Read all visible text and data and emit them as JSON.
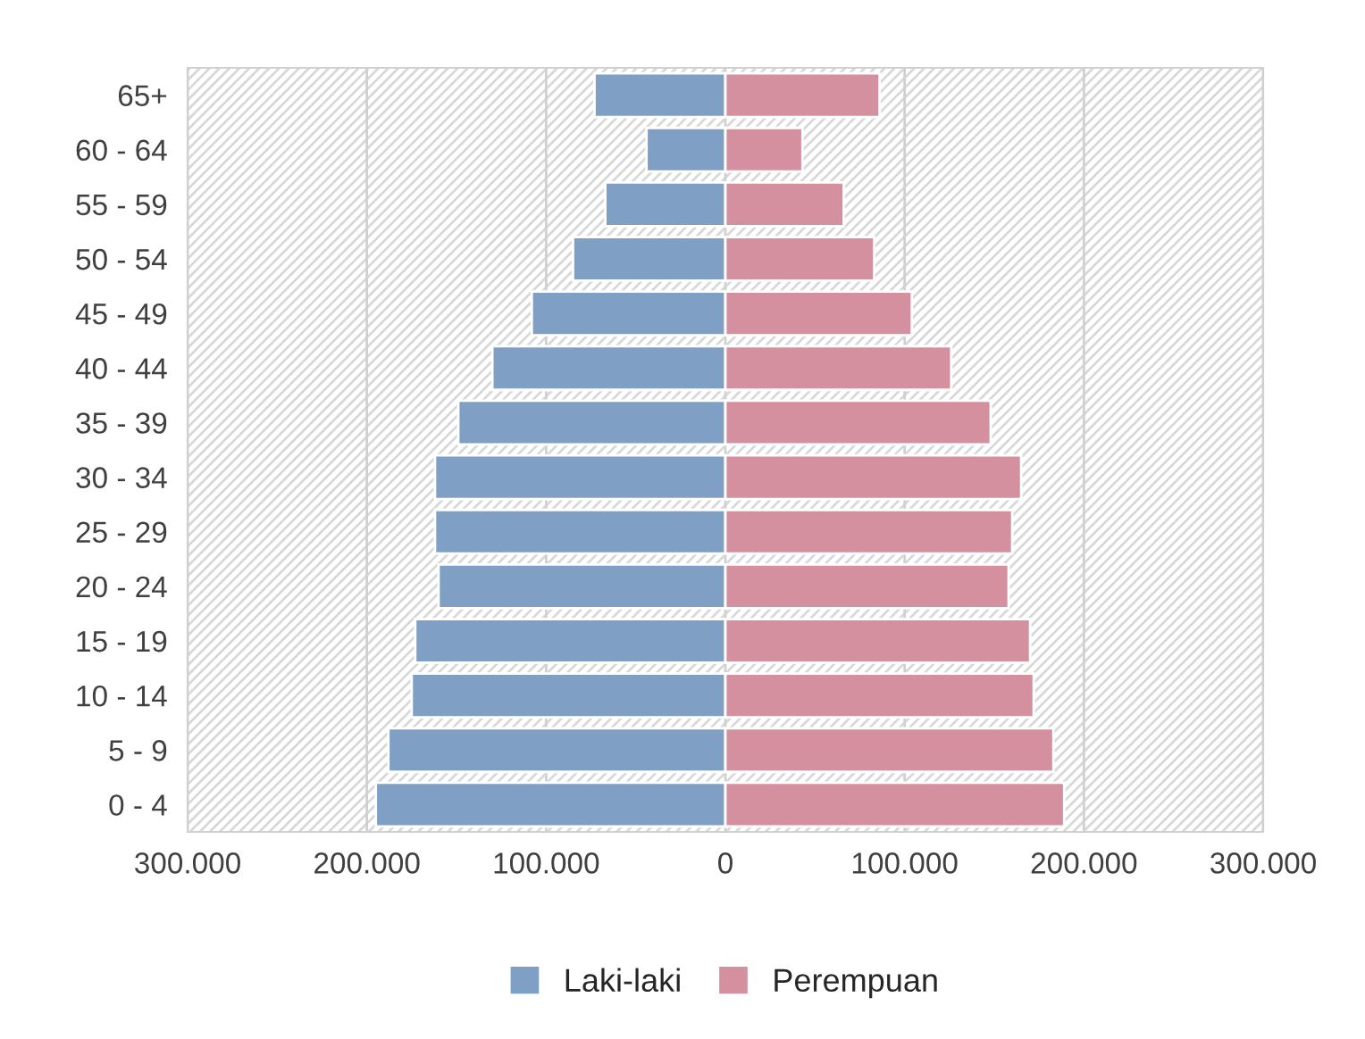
{
  "chart_data": {
    "type": "bar",
    "orientation": "horizontal",
    "stacked": true,
    "categories": [
      "65+",
      "60 - 64",
      "55 - 59",
      "50 - 54",
      "45 - 49",
      "40 - 44",
      "35 - 39",
      "30 - 34",
      "25 - 29",
      "20 - 24",
      "15 - 19",
      "10 - 14",
      "5 - 9",
      "0 - 4"
    ],
    "series": [
      {
        "name": "Laki-laki",
        "color": "#7f9fc4",
        "values": [
          -73000,
          -44000,
          -67000,
          -85000,
          -108000,
          -130000,
          -149000,
          -162000,
          -162000,
          -160000,
          -173000,
          -175000,
          -188000,
          -195000
        ]
      },
      {
        "name": "Perempuan",
        "color": "#d4909f",
        "values": [
          86000,
          43000,
          66000,
          83000,
          104000,
          126000,
          148000,
          165000,
          160000,
          158000,
          170000,
          172000,
          183000,
          189000
        ]
      }
    ],
    "xlim": [
      -300000,
      300000
    ],
    "xticks": [
      {
        "value": -300000,
        "label": "300.000"
      },
      {
        "value": -200000,
        "label": "200.000"
      },
      {
        "value": -100000,
        "label": "100.000"
      },
      0,
      {
        "value": 100000,
        "label": "100.000"
      },
      {
        "value": 200000,
        "label": "200.000"
      },
      {
        "value": 300000,
        "label": "300.000"
      }
    ],
    "grid": "x",
    "legend": "bottom"
  }
}
